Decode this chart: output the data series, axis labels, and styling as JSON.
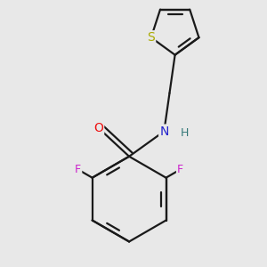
{
  "background_color": "#e8e8e8",
  "bond_color": "#1a1a1a",
  "atom_colors": {
    "O": "#ee1111",
    "N": "#2222cc",
    "H": "#337777",
    "F": "#cc22cc",
    "S": "#aaaa00"
  },
  "linewidth": 1.6,
  "figsize": [
    3.0,
    3.0
  ],
  "dpi": 100
}
